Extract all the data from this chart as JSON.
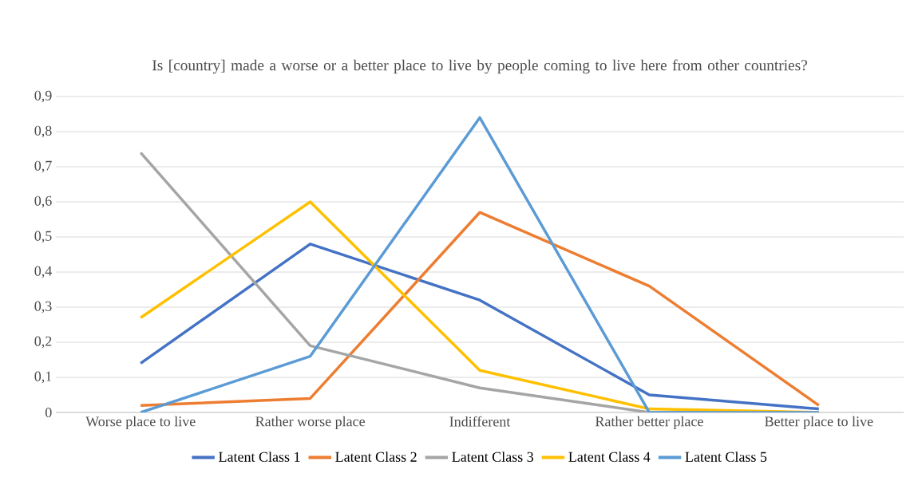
{
  "chart_data": {
    "type": "line",
    "title": "Is [country] made a worse or a better place to live by people coming to live here from other countries?",
    "categories": [
      "Worse place to live",
      "Rather worse place",
      "Indifferent",
      "Rather better place",
      "Better place to live"
    ],
    "series": [
      {
        "name": "Latent Class 1",
        "color": "#4472c4",
        "values": [
          0.14,
          0.48,
          0.32,
          0.05,
          0.01
        ]
      },
      {
        "name": "Latent Class 2",
        "color": "#ed7d31",
        "values": [
          0.02,
          0.04,
          0.57,
          0.36,
          0.02
        ]
      },
      {
        "name": "Latent Class 3",
        "color": "#a5a5a5",
        "values": [
          0.74,
          0.19,
          0.07,
          0.0,
          0.0
        ]
      },
      {
        "name": "Latent Class 4",
        "color": "#ffc000",
        "values": [
          0.27,
          0.6,
          0.12,
          0.01,
          0.0
        ]
      },
      {
        "name": "Latent Class 5",
        "color": "#5b9bd5",
        "values": [
          0.0,
          0.16,
          0.84,
          0.0,
          0.0
        ]
      }
    ],
    "ylim": [
      0,
      0.9
    ],
    "yticks": [
      0,
      {
        "value": 0.1,
        "label": "0,1"
      },
      {
        "value": 0.2,
        "label": "0,2"
      },
      {
        "value": 0.3,
        "label": "0,3"
      },
      {
        "value": 0.4,
        "label": "0,4"
      },
      {
        "value": 0.5,
        "label": "0,5"
      },
      {
        "value": 0.6,
        "label": "0,6"
      },
      {
        "value": 0.7,
        "label": "0,7"
      },
      {
        "value": 0.8,
        "label": "0,8"
      },
      {
        "value": 0.9,
        "label": "0,9"
      }
    ],
    "grid": "y",
    "legend": "bottom",
    "marker": "none",
    "line_style": "solid"
  }
}
